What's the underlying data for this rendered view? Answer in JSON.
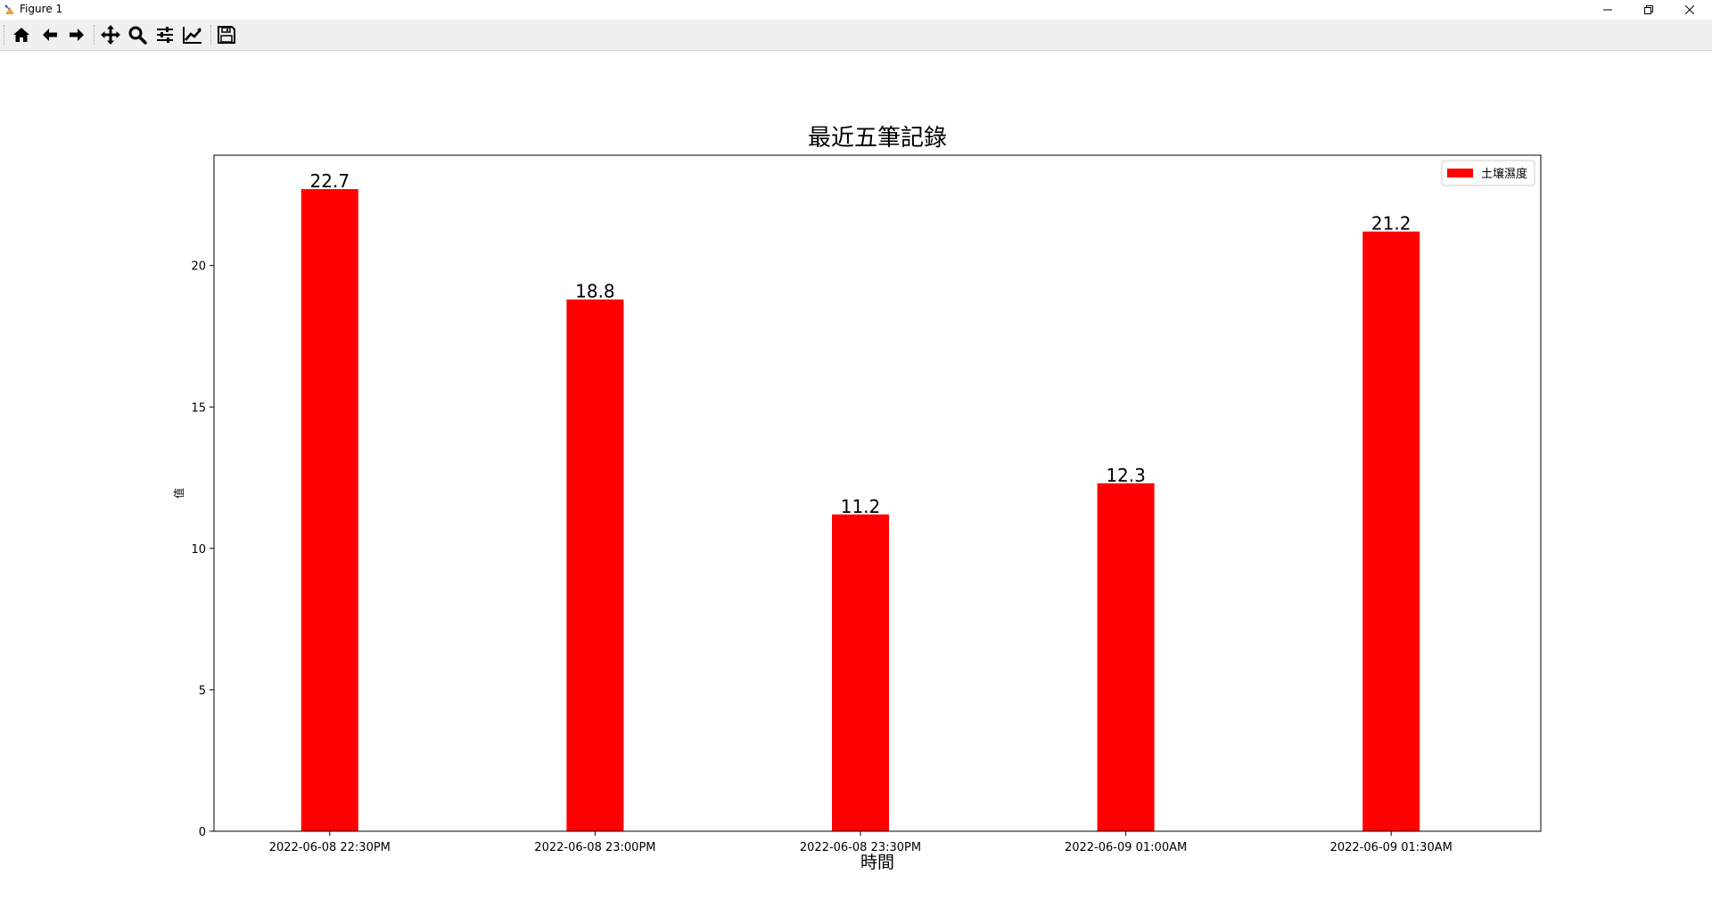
{
  "window": {
    "title": "Figure 1"
  },
  "toolbar": {
    "items": [
      {
        "name": "home-icon",
        "label": "Home"
      },
      {
        "name": "back-arrow-icon",
        "label": "Back"
      },
      {
        "name": "forward-arrow-icon",
        "label": "Forward"
      },
      {
        "name": "pan-move-icon",
        "label": "Pan"
      },
      {
        "name": "zoom-magnifier-icon",
        "label": "Zoom"
      },
      {
        "name": "configure-subplots-icon",
        "label": "Subplots"
      },
      {
        "name": "edit-axis-icon",
        "label": "Customize"
      },
      {
        "name": "save-floppy-icon",
        "label": "Save"
      }
    ]
  },
  "chart_data": {
    "type": "bar",
    "title": "最近五筆記錄",
    "xlabel": "時間",
    "ylabel": "值",
    "categories": [
      "2022-06-08 22:30PM",
      "2022-06-08 23:00PM",
      "2022-06-08 23:30PM",
      "2022-06-09 01:00AM",
      "2022-06-09 01:30AM"
    ],
    "series": [
      {
        "name": "土壤濕度",
        "values": [
          22.7,
          18.8,
          11.2,
          12.3,
          21.2
        ],
        "color": "#ff0000"
      }
    ],
    "data_labels": [
      "22.7",
      "18.8",
      "11.2",
      "12.3",
      "21.2"
    ],
    "yticks": [
      0,
      5,
      10,
      15,
      20
    ],
    "ylim": [
      0,
      23.9
    ],
    "grid": false,
    "legend_position": "top-right"
  }
}
